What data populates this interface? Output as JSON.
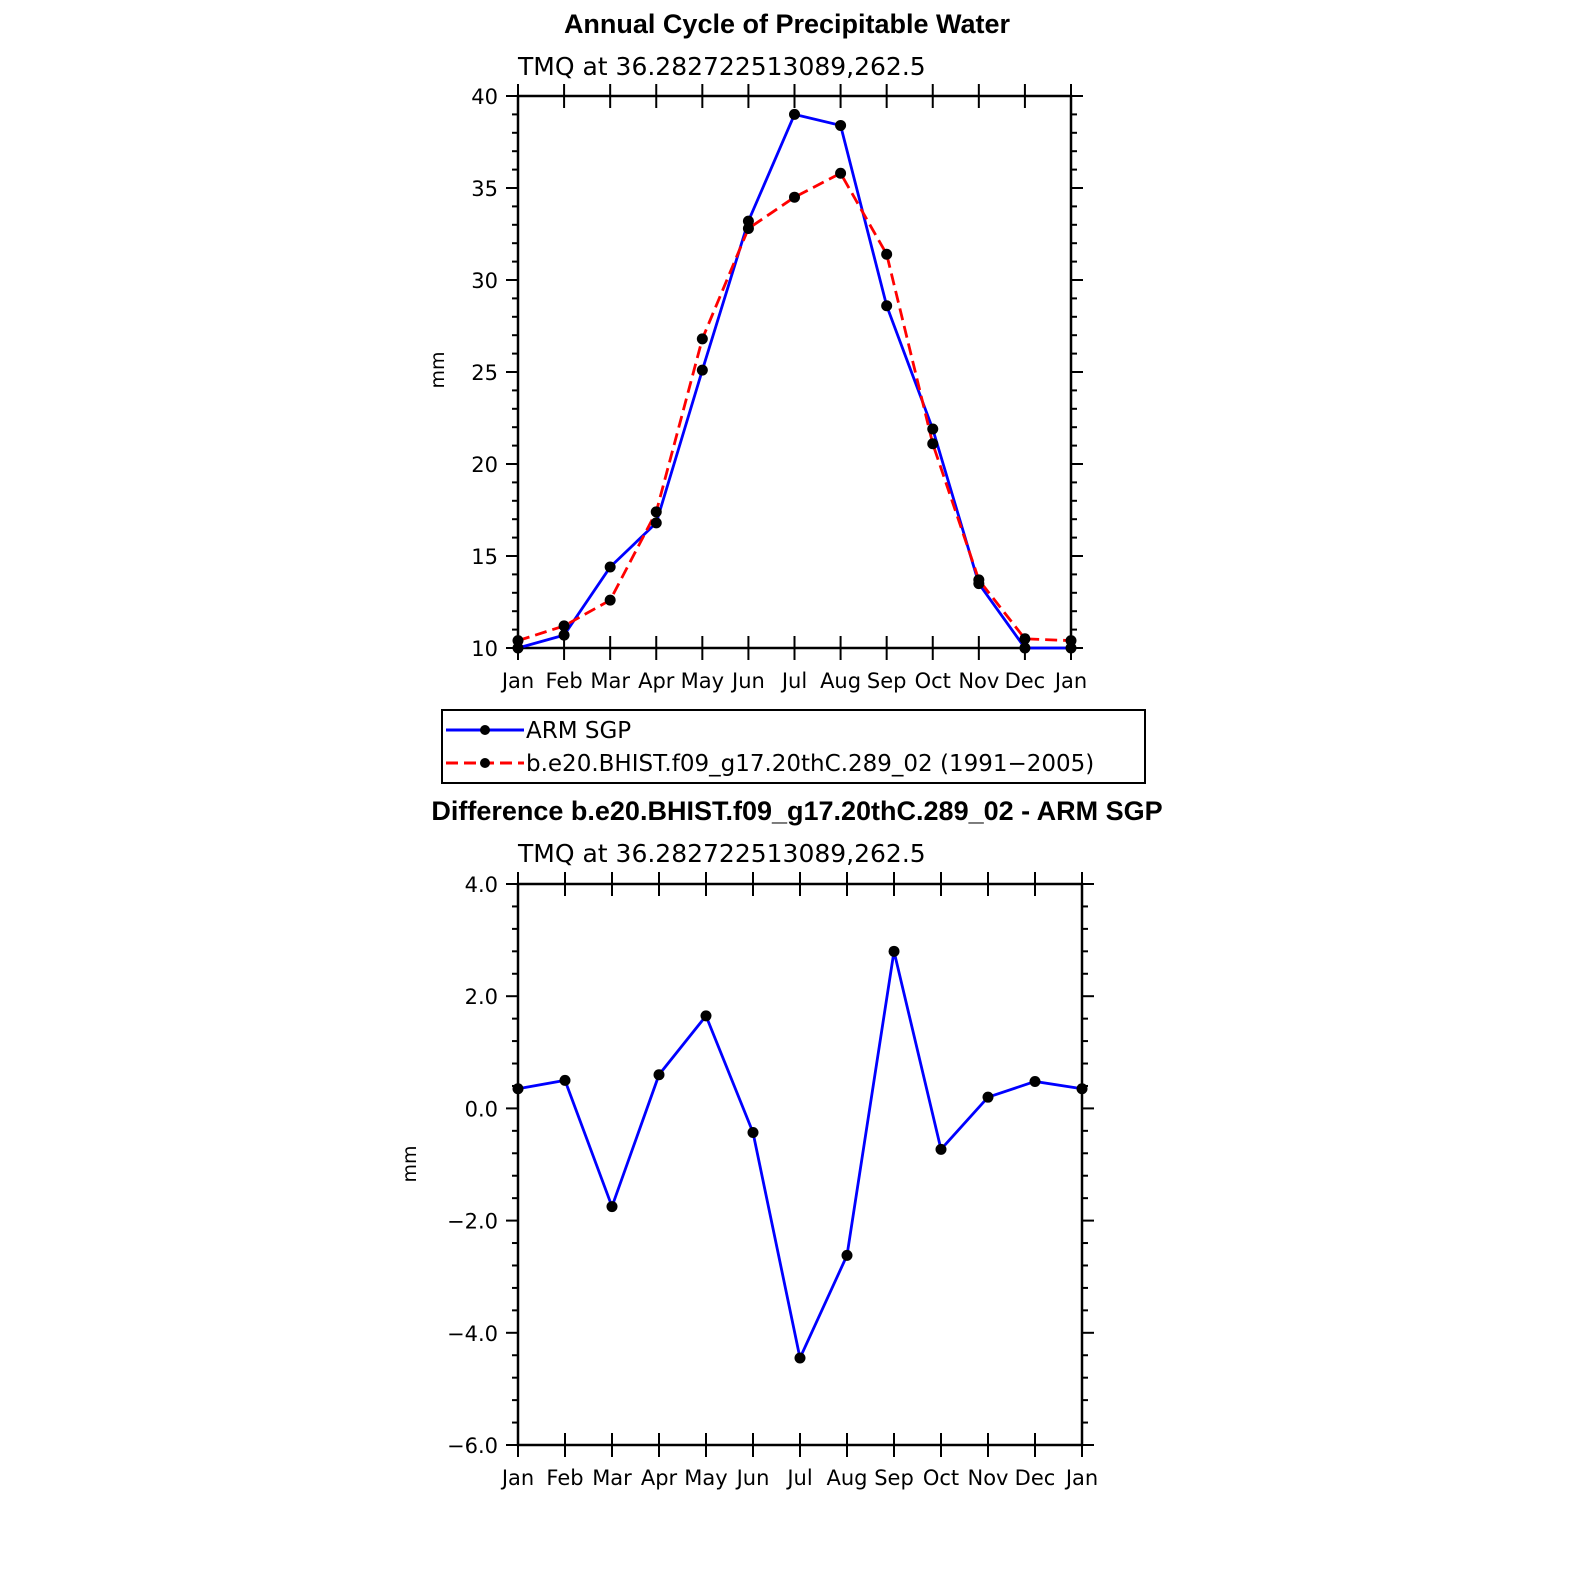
{
  "chart_data": [
    {
      "type": "line",
      "title": "Annual Cycle of Precipitable Water",
      "subtitle": "TMQ at 36.282722513089,262.5",
      "ylabel": "mm",
      "xlabel": "",
      "categories": [
        "Jan",
        "Feb",
        "Mar",
        "Apr",
        "May",
        "Jun",
        "Jul",
        "Aug",
        "Sep",
        "Oct",
        "Nov",
        "Dec",
        "Jan"
      ],
      "ylim": [
        10,
        40
      ],
      "yticks": [
        "10",
        "15",
        "20",
        "25",
        "30",
        "35",
        "40"
      ],
      "series": [
        {
          "name": "ARM SGP",
          "color": "#0000ff",
          "dash": "solid",
          "values": [
            10.0,
            10.7,
            14.4,
            16.8,
            25.1,
            33.2,
            39.0,
            38.4,
            28.6,
            21.9,
            13.5,
            10.0,
            10.0
          ]
        },
        {
          "name": "b.e20.BHIST.f09_g17.20thC.289_02 (1991−2005)",
          "color": "#ff0000",
          "dash": "dashed",
          "values": [
            10.4,
            11.2,
            12.6,
            17.4,
            26.8,
            32.8,
            34.5,
            35.8,
            31.4,
            21.1,
            13.7,
            10.5,
            10.4
          ]
        }
      ],
      "legend": "bottom"
    },
    {
      "type": "line",
      "title": "Difference b.e20.BHIST.f09_g17.20thC.289_02 - ARM SGP",
      "subtitle": "TMQ at 36.282722513089,262.5",
      "ylabel": "mm",
      "xlabel": "",
      "categories": [
        "Jan",
        "Feb",
        "Mar",
        "Apr",
        "May",
        "Jun",
        "Jul",
        "Aug",
        "Sep",
        "Oct",
        "Nov",
        "Dec",
        "Jan"
      ],
      "ylim": [
        -6,
        4
      ],
      "yticks": [
        "−6.0",
        "−4.0",
        "−2.0",
        "0.0",
        "2.0",
        "4.0"
      ],
      "series": [
        {
          "color": "#0000ff",
          "dash": "solid",
          "values": [
            0.35,
            0.5,
            -1.75,
            0.6,
            1.65,
            -0.43,
            -4.45,
            -2.62,
            2.8,
            -0.73,
            0.2,
            0.48,
            0.35
          ]
        }
      ]
    }
  ]
}
